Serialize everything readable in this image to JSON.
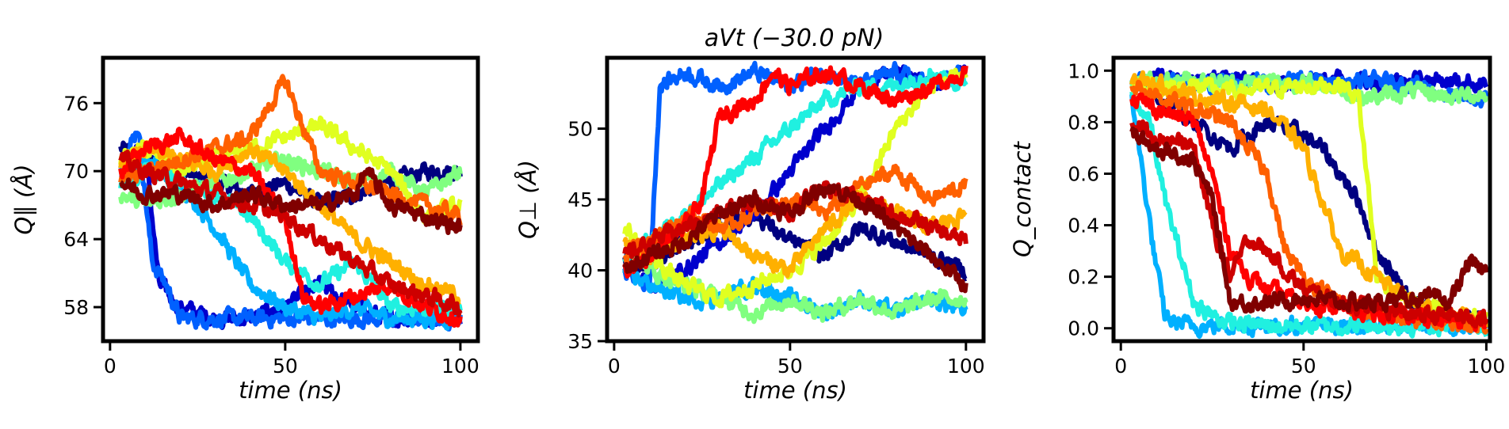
{
  "figure_title": "aVt (−30.0 pN)",
  "chart_data": [
    {
      "type": "line",
      "title": "",
      "xlabel": "time (ns)",
      "ylabel": "Q∥ (Å)",
      "xlim": [
        -2,
        105
      ],
      "ylim": [
        55,
        80
      ],
      "xticks": [
        0,
        50,
        100
      ],
      "yticks": [
        58,
        64,
        70,
        76
      ],
      "xtick_labels": [
        "0",
        "50",
        "100"
      ],
      "ytick_labels": [
        "58",
        "64",
        "70",
        "76"
      ],
      "grid": false,
      "legend": "none",
      "series": [
        {
          "color": "#000080",
          "x": [
            3,
            10,
            20,
            30,
            40,
            50,
            60,
            70,
            80,
            90,
            100
          ],
          "y": [
            72,
            71,
            70,
            69,
            68,
            69,
            67,
            68,
            69,
            70,
            70
          ]
        },
        {
          "color": "#0000cd",
          "x": [
            3,
            10,
            14,
            20,
            30,
            40,
            50,
            60,
            70,
            80,
            90,
            100
          ],
          "y": [
            71,
            72,
            60,
            58,
            57,
            57,
            58,
            60,
            58,
            57,
            57,
            57
          ]
        },
        {
          "color": "#0060ff",
          "x": [
            3,
            8,
            12,
            16,
            20,
            30,
            40,
            50,
            60,
            70,
            80,
            90,
            100
          ],
          "y": [
            70,
            74,
            62,
            60,
            57,
            57,
            57,
            57,
            57,
            57,
            57,
            57,
            57
          ]
        },
        {
          "color": "#00b0ff",
          "x": [
            3,
            10,
            20,
            30,
            40,
            50,
            60,
            70,
            80,
            90,
            100
          ],
          "y": [
            70,
            71,
            69,
            65,
            60,
            58,
            57,
            58,
            57,
            57,
            57
          ]
        },
        {
          "color": "#20f0e0",
          "x": [
            3,
            10,
            20,
            30,
            40,
            50,
            60,
            70,
            80,
            90,
            100
          ],
          "y": [
            69,
            70,
            69,
            68,
            66,
            62,
            60,
            62,
            58,
            58,
            58
          ]
        },
        {
          "color": "#80ff80",
          "x": [
            3,
            10,
            20,
            30,
            40,
            50,
            60,
            70,
            80,
            90,
            100
          ],
          "y": [
            68,
            67,
            68,
            69,
            70,
            71,
            70,
            69,
            70,
            68,
            70
          ]
        },
        {
          "color": "#e0ff20",
          "x": [
            3,
            10,
            20,
            30,
            40,
            50,
            60,
            70,
            80,
            90,
            100
          ],
          "y": [
            71,
            72,
            70,
            71,
            72,
            73,
            74,
            72,
            70,
            66,
            67
          ]
        },
        {
          "color": "#ffb000",
          "x": [
            3,
            10,
            20,
            30,
            40,
            50,
            60,
            70,
            80,
            90,
            100
          ],
          "y": [
            70,
            72,
            71,
            70,
            72,
            70,
            67,
            64,
            62,
            60,
            59
          ]
        },
        {
          "color": "#ff6000",
          "x": [
            3,
            10,
            20,
            30,
            40,
            50,
            60,
            70,
            80,
            90,
            100
          ],
          "y": [
            69,
            70,
            71,
            72,
            73,
            78,
            70,
            69,
            68,
            67,
            66
          ]
        },
        {
          "color": "#ff0000",
          "x": [
            3,
            10,
            20,
            30,
            40,
            50,
            55,
            60,
            70,
            80,
            90,
            100
          ],
          "y": [
            70,
            72,
            73,
            71,
            70,
            66,
            59,
            58,
            59,
            60,
            58,
            57
          ]
        },
        {
          "color": "#cd0000",
          "x": [
            3,
            10,
            20,
            30,
            40,
            50,
            60,
            70,
            80,
            90,
            100
          ],
          "y": [
            71,
            70,
            69,
            68,
            67,
            66,
            64,
            62,
            60,
            59,
            58
          ]
        },
        {
          "color": "#800000",
          "x": [
            3,
            10,
            20,
            30,
            40,
            50,
            60,
            70,
            73,
            80,
            90,
            100
          ],
          "y": [
            69,
            68,
            68,
            67,
            68,
            67,
            67,
            68,
            70,
            67,
            66,
            65
          ]
        }
      ]
    },
    {
      "type": "line",
      "title": "aVt (−30.0 pN)",
      "xlabel": "time (ns)",
      "ylabel": "Q⊥ (Å)",
      "xlim": [
        -2,
        105
      ],
      "ylim": [
        35,
        55
      ],
      "xticks": [
        0,
        50,
        100
      ],
      "yticks": [
        35,
        40,
        45,
        50
      ],
      "xtick_labels": [
        "0",
        "50",
        "100"
      ],
      "ytick_labels": [
        "35",
        "40",
        "45",
        "50"
      ],
      "grid": false,
      "legend": "none",
      "series": [
        {
          "color": "#000080",
          "x": [
            3,
            10,
            20,
            30,
            40,
            50,
            60,
            70,
            80,
            90,
            100
          ],
          "y": [
            41,
            40,
            42,
            43,
            44,
            42,
            41,
            43,
            42,
            41,
            40
          ]
        },
        {
          "color": "#0000cd",
          "x": [
            3,
            10,
            20,
            30,
            40,
            50,
            60,
            70,
            80,
            90,
            100
          ],
          "y": [
            40,
            39,
            40,
            42,
            44,
            47,
            50,
            53,
            54,
            53,
            54
          ]
        },
        {
          "color": "#0060ff",
          "x": [
            3,
            10,
            13,
            20,
            30,
            40,
            50,
            60,
            70,
            80,
            90,
            100
          ],
          "y": [
            40,
            39,
            53,
            54,
            53,
            54,
            53,
            54,
            53,
            54,
            53,
            54
          ]
        },
        {
          "color": "#00b0ff",
          "x": [
            3,
            10,
            20,
            30,
            40,
            50,
            60,
            70,
            80,
            90,
            100
          ],
          "y": [
            40,
            39,
            38,
            38,
            39,
            38,
            37,
            38,
            37,
            38,
            37
          ]
        },
        {
          "color": "#20f0e0",
          "x": [
            3,
            10,
            20,
            30,
            40,
            50,
            60,
            70,
            80,
            90,
            100
          ],
          "y": [
            41,
            42,
            44,
            46,
            48,
            50,
            52,
            53,
            53,
            54,
            53
          ]
        },
        {
          "color": "#80ff80",
          "x": [
            3,
            10,
            20,
            30,
            40,
            50,
            60,
            70,
            80,
            90,
            100
          ],
          "y": [
            42,
            40,
            39,
            38,
            37,
            38,
            37,
            38,
            37,
            38,
            38
          ]
        },
        {
          "color": "#e0ff20",
          "x": [
            3,
            10,
            20,
            30,
            40,
            50,
            60,
            70,
            80,
            90,
            100
          ],
          "y": [
            43,
            41,
            39,
            38,
            39,
            40,
            42,
            45,
            50,
            53,
            54
          ]
        },
        {
          "color": "#ffb000",
          "x": [
            3,
            10,
            20,
            30,
            40,
            50,
            60,
            70,
            80,
            90,
            100
          ],
          "y": [
            42,
            41,
            42,
            43,
            41,
            40,
            43,
            45,
            44,
            43,
            44
          ]
        },
        {
          "color": "#ff6000",
          "x": [
            3,
            10,
            20,
            30,
            40,
            50,
            60,
            70,
            80,
            90,
            100
          ],
          "y": [
            41,
            42,
            44,
            43,
            44,
            45,
            44,
            46,
            47,
            45,
            46
          ]
        },
        {
          "color": "#ff0000",
          "x": [
            3,
            10,
            20,
            25,
            30,
            40,
            45,
            50,
            60,
            70,
            80,
            90,
            100
          ],
          "y": [
            40,
            41,
            43,
            45,
            51,
            52,
            54,
            53,
            54,
            53,
            52,
            53,
            54
          ]
        },
        {
          "color": "#cd0000",
          "x": [
            3,
            10,
            20,
            30,
            40,
            50,
            60,
            70,
            80,
            90,
            100
          ],
          "y": [
            41,
            42,
            43,
            44,
            45,
            44,
            46,
            45,
            44,
            43,
            42
          ]
        },
        {
          "color": "#800000",
          "x": [
            3,
            10,
            20,
            30,
            40,
            50,
            60,
            70,
            80,
            90,
            100
          ],
          "y": [
            40,
            41,
            42,
            44,
            45,
            44,
            46,
            45,
            43,
            41,
            39
          ]
        }
      ]
    },
    {
      "type": "line",
      "title": "",
      "xlabel": "time (ns)",
      "ylabel": "Q_contact",
      "xlim": [
        -2,
        101
      ],
      "ylim": [
        -0.05,
        1.05
      ],
      "xticks": [
        0,
        50,
        100
      ],
      "yticks": [
        0.0,
        0.2,
        0.4,
        0.6,
        0.8,
        1.0
      ],
      "xtick_labels": [
        "0",
        "50",
        "100"
      ],
      "ytick_labels": [
        "0.0",
        "0.2",
        "0.4",
        "0.6",
        "0.8",
        "1.0"
      ],
      "grid": false,
      "legend": "none",
      "series": [
        {
          "color": "#000080",
          "x": [
            3,
            10,
            20,
            30,
            40,
            50,
            55,
            60,
            65,
            70,
            80,
            90,
            100
          ],
          "y": [
            0.95,
            0.9,
            0.8,
            0.7,
            0.8,
            0.75,
            0.7,
            0.6,
            0.5,
            0.3,
            0.1,
            0.05,
            0.03
          ]
        },
        {
          "color": "#0000cd",
          "x": [
            3,
            10,
            20,
            30,
            40,
            50,
            60,
            70,
            80,
            90,
            100
          ],
          "y": [
            0.95,
            0.97,
            0.96,
            0.97,
            0.95,
            0.96,
            0.97,
            0.95,
            0.97,
            0.96,
            0.95
          ]
        },
        {
          "color": "#0060ff",
          "x": [
            3,
            10,
            20,
            30,
            40,
            50,
            60,
            70,
            80,
            90,
            100
          ],
          "y": [
            0.95,
            0.96,
            0.95,
            0.96,
            0.95,
            0.96,
            0.95,
            0.96,
            0.95,
            0.9,
            0.88
          ]
        },
        {
          "color": "#00b0ff",
          "x": [
            3,
            6,
            9,
            12,
            15,
            20,
            30,
            40,
            50,
            60,
            70,
            80,
            90,
            100
          ],
          "y": [
            0.9,
            0.6,
            0.3,
            0.05,
            0.02,
            0.01,
            0.01,
            0.01,
            0.01,
            0.01,
            0.01,
            0.01,
            0.01,
            0.01
          ]
        },
        {
          "color": "#20f0e0",
          "x": [
            3,
            8,
            12,
            16,
            20,
            25,
            30,
            40,
            50,
            60,
            70,
            80,
            90,
            100
          ],
          "y": [
            0.9,
            0.8,
            0.5,
            0.3,
            0.1,
            0.05,
            0.02,
            0.01,
            0.01,
            0.01,
            0.01,
            0.01,
            0.01,
            0.01
          ]
        },
        {
          "color": "#80ff80",
          "x": [
            3,
            10,
            20,
            30,
            40,
            50,
            60,
            65,
            70,
            80,
            90,
            100
          ],
          "y": [
            0.95,
            0.96,
            0.97,
            0.95,
            0.96,
            0.95,
            0.93,
            0.9,
            0.9,
            0.92,
            0.9,
            0.91
          ]
        },
        {
          "color": "#e0ff20",
          "x": [
            3,
            10,
            20,
            30,
            40,
            50,
            60,
            65,
            68,
            70,
            80,
            90,
            100
          ],
          "y": [
            0.95,
            0.93,
            0.94,
            0.92,
            0.93,
            0.94,
            0.95,
            0.9,
            0.5,
            0.2,
            0.1,
            0.05,
            0.03
          ]
        },
        {
          "color": "#ffb000",
          "x": [
            3,
            10,
            20,
            30,
            40,
            50,
            55,
            60,
            70,
            80,
            90,
            100
          ],
          "y": [
            0.97,
            0.95,
            0.9,
            0.88,
            0.85,
            0.7,
            0.5,
            0.3,
            0.2,
            0.1,
            0.05,
            0.03
          ]
        },
        {
          "color": "#ff6000",
          "x": [
            3,
            10,
            20,
            30,
            40,
            45,
            50,
            60,
            70,
            80,
            90,
            100
          ],
          "y": [
            0.95,
            0.9,
            0.85,
            0.8,
            0.6,
            0.3,
            0.2,
            0.1,
            0.05,
            0.03,
            0.02,
            0.02
          ]
        },
        {
          "color": "#ff0000",
          "x": [
            3,
            10,
            20,
            25,
            30,
            35,
            40,
            50,
            60,
            70,
            80,
            90,
            100
          ],
          "y": [
            0.9,
            0.85,
            0.8,
            0.6,
            0.3,
            0.2,
            0.15,
            0.1,
            0.08,
            0.05,
            0.05,
            0.03,
            0.02
          ]
        },
        {
          "color": "#cd0000",
          "x": [
            3,
            10,
            20,
            25,
            30,
            35,
            40,
            50,
            60,
            70,
            80,
            90,
            100
          ],
          "y": [
            0.8,
            0.75,
            0.7,
            0.4,
            0.2,
            0.35,
            0.3,
            0.15,
            0.1,
            0.08,
            0.05,
            0.05,
            0.04
          ]
        },
        {
          "color": "#800000",
          "x": [
            3,
            10,
            20,
            25,
            30,
            40,
            50,
            60,
            70,
            80,
            90,
            95,
            100
          ],
          "y": [
            0.75,
            0.7,
            0.65,
            0.5,
            0.1,
            0.1,
            0.12,
            0.1,
            0.1,
            0.12,
            0.1,
            0.25,
            0.22
          ]
        }
      ]
    }
  ]
}
